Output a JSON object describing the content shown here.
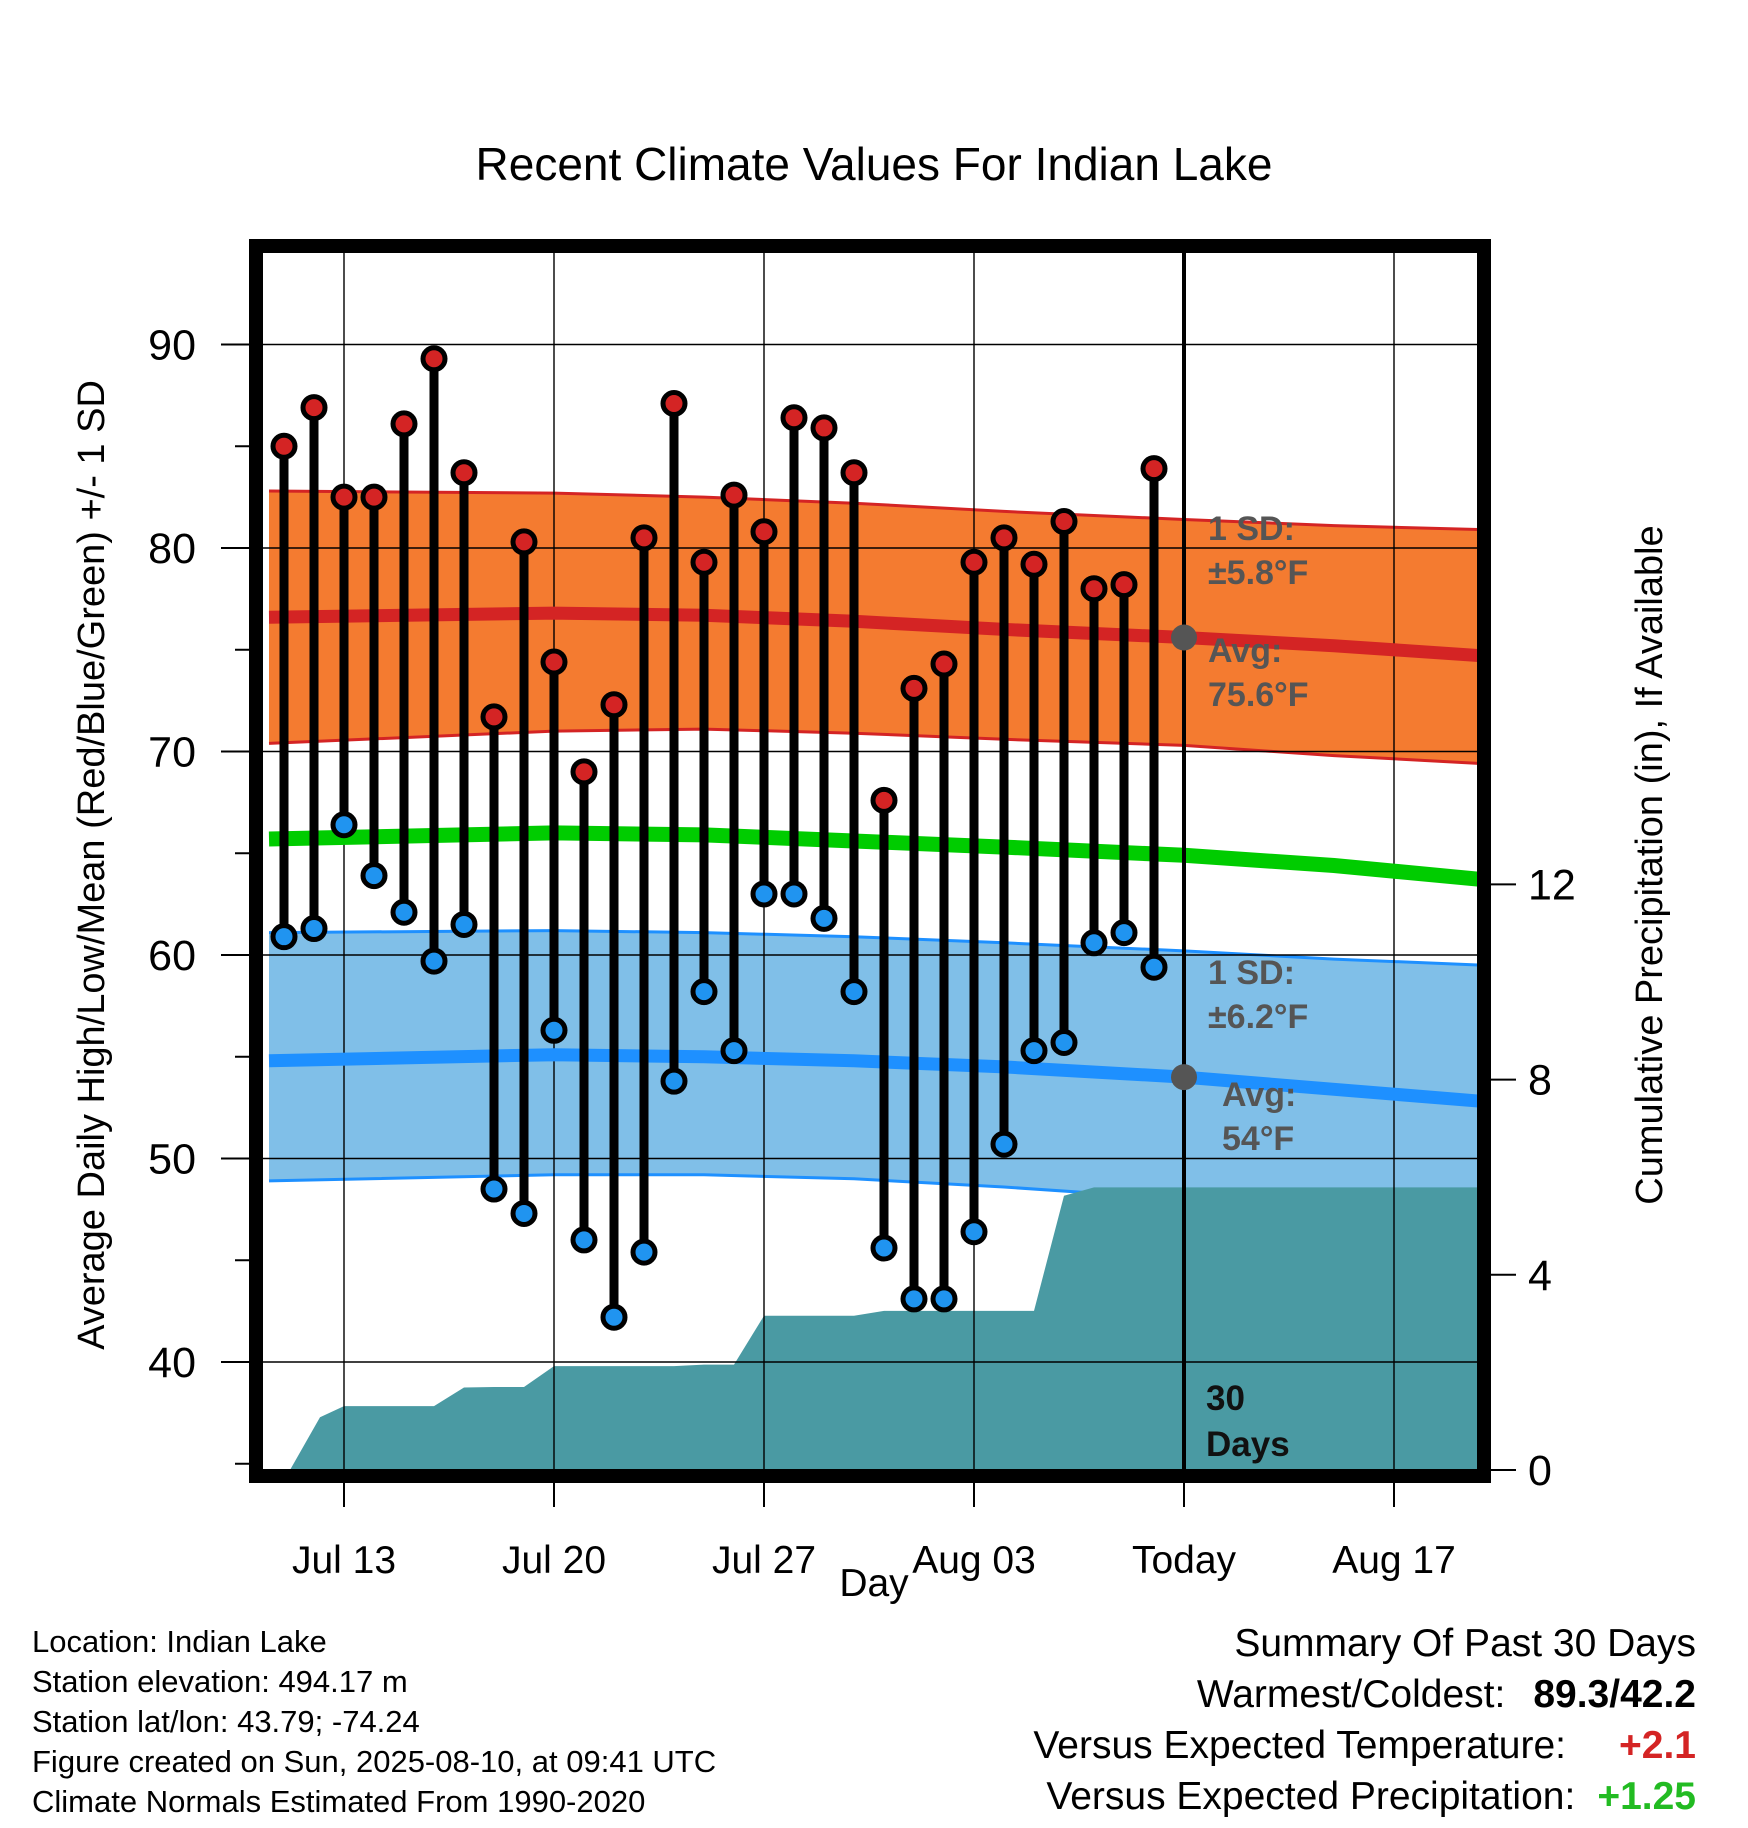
{
  "chart_data": {
    "type": "line",
    "title": "Recent Climate Values For Indian Lake",
    "xlabel": "Day",
    "ylabel_left": "Average Daily High/Low/Mean (Red/Blue/Green) +/- 1 SD",
    "ylabel_right": "Cumulative Precipitation (in), If Available",
    "ylim_left": [
      34.5,
      95
    ],
    "ylim_right": [
      0,
      24
    ],
    "left_ticks": [
      40,
      50,
      60,
      70,
      80,
      90
    ],
    "right_ticks": [
      0,
      4,
      8,
      12
    ],
    "x_tick_labels": [
      {
        "day": 3,
        "label": "Jul 13"
      },
      {
        "day": 10,
        "label": "Jul 20"
      },
      {
        "day": 17,
        "label": "Jul 27"
      },
      {
        "day": 24,
        "label": "Aug 03"
      },
      {
        "day": 31,
        "label": "Today"
      },
      {
        "day": 38,
        "label": "Aug 17"
      }
    ],
    "xlim": [
      0.5,
      41
    ],
    "today_day": 31,
    "days": [
      1,
      2,
      3,
      4,
      5,
      6,
      7,
      8,
      9,
      10,
      11,
      12,
      13,
      14,
      15,
      16,
      17,
      18,
      19,
      20,
      21,
      22,
      23,
      24,
      25,
      26,
      27,
      28,
      29,
      30
    ],
    "daily_high": [
      85.0,
      86.9,
      82.5,
      82.5,
      86.1,
      89.3,
      83.7,
      71.7,
      80.3,
      74.4,
      69.0,
      72.3,
      80.5,
      87.1,
      79.3,
      82.6,
      80.8,
      86.4,
      85.9,
      83.7,
      67.6,
      73.1,
      74.3,
      79.3,
      80.5,
      79.2,
      81.3,
      78.0,
      78.2,
      83.9
    ],
    "daily_low": [
      60.9,
      61.3,
      66.4,
      63.9,
      62.1,
      59.7,
      61.5,
      48.5,
      47.3,
      56.3,
      46.0,
      42.2,
      45.4,
      53.8,
      58.2,
      55.3,
      63.0,
      63.0,
      61.8,
      58.2,
      45.6,
      43.1,
      43.1,
      46.4,
      50.7,
      55.3,
      55.7,
      60.6,
      61.1,
      59.4
    ],
    "normals": {
      "x": [
        0.5,
        10,
        15,
        20,
        25,
        31,
        36,
        41
      ],
      "high_avg": [
        76.6,
        76.8,
        76.7,
        76.4,
        76.0,
        75.6,
        75.2,
        74.7
      ],
      "high_upper": [
        82.8,
        82.7,
        82.5,
        82.2,
        81.8,
        81.4,
        81.1,
        80.9
      ],
      "high_lower": [
        70.4,
        71.0,
        71.1,
        70.9,
        70.6,
        70.3,
        69.8,
        69.4
      ],
      "mean_avg": [
        65.7,
        66.0,
        65.9,
        65.6,
        65.3,
        64.9,
        64.4,
        63.7
      ],
      "low_avg": [
        54.8,
        55.1,
        55.0,
        54.8,
        54.5,
        54.0,
        53.4,
        52.8
      ],
      "low_upper": [
        61.1,
        61.2,
        61.1,
        60.9,
        60.6,
        60.2,
        59.8,
        59.5
      ],
      "low_lower": [
        48.9,
        49.2,
        49.2,
        49.0,
        48.6,
        48.0,
        47.4,
        46.6
      ]
    },
    "precip_cumulative": {
      "x": [
        1.2,
        2.2,
        3,
        4,
        5,
        6,
        7,
        8,
        9,
        10,
        11,
        12,
        13,
        14,
        15,
        16,
        17,
        18,
        19,
        20,
        21,
        22,
        23,
        24,
        25,
        26,
        27,
        28,
        29,
        30,
        41
      ],
      "values": [
        0.0,
        1.08,
        1.31,
        1.31,
        1.31,
        1.31,
        1.69,
        1.7,
        1.7,
        2.13,
        2.13,
        2.13,
        2.13,
        2.13,
        2.16,
        2.16,
        3.16,
        3.16,
        3.16,
        3.16,
        3.26,
        3.26,
        3.26,
        3.26,
        3.26,
        3.26,
        5.62,
        5.79,
        5.79,
        5.79,
        5.79
      ]
    },
    "annotations": {
      "high_sd_label": "1 SD:",
      "high_sd_value": "±5.8°F",
      "high_avg_label": "Avg:",
      "high_avg_value": "75.6°F",
      "low_sd_label": "1 SD:",
      "low_sd_value": "±6.2°F",
      "low_avg_label": "Avg:",
      "low_avg_value": "54°F",
      "days_num": "30",
      "days_word": "Days"
    },
    "colors": {
      "high_band": "#f47b30",
      "high_line": "#d42424",
      "low_band": "#80bfe8",
      "low_line": "#1e90ff",
      "mean_line": "#00cc00",
      "precip": "#4a9aa3",
      "high_dot": "#d42424",
      "low_dot": "#2094f0",
      "annotation_text": "#555555"
    }
  },
  "info": {
    "location": "Location: Indian Lake",
    "elevation": "Station elevation: 494.17 m",
    "latlon": "Station lat/lon: 43.79; -74.24",
    "created": "Figure created on Sun, 2025-08-10, at 09:41 UTC",
    "normals": "Climate Normals Estimated From 1990-2020"
  },
  "summary": {
    "title": "Summary Of Past 30 Days",
    "warm_cold_label": "Warmest/Coldest:",
    "warm_cold_value": "89.3/42.2",
    "temp_label": "Versus Expected Temperature:",
    "temp_value": "+2.1",
    "temp_color": "#d42424",
    "precip_label": "Versus Expected Precipitation:",
    "precip_value": "+1.25",
    "precip_color": "#22bb22"
  }
}
